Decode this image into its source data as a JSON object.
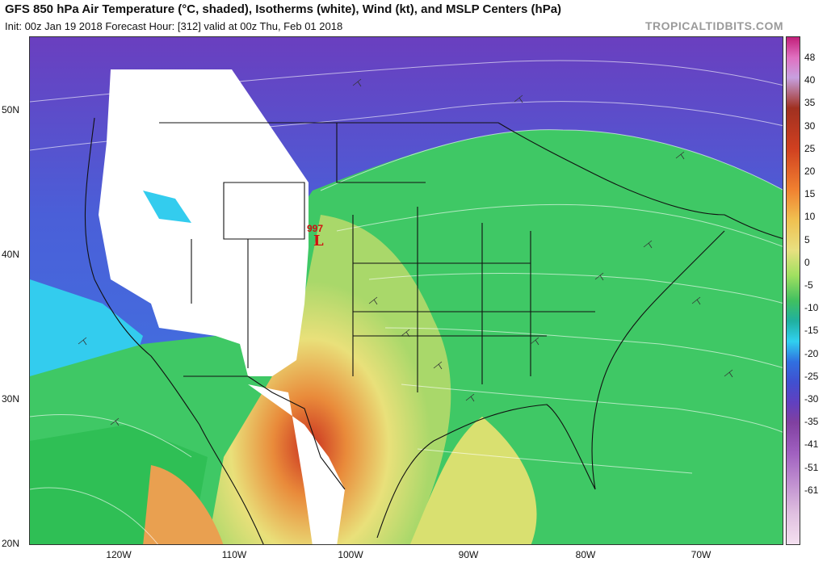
{
  "header": {
    "title": "GFS 850 hPa Air Temperature (°C, shaded), Isotherms (white), Wind (kt), and MSLP Centers (hPa)",
    "subtitle": "Init: 00z Jan 19 2018   Forecast Hour: [312]   valid at 00z Thu, Feb 01 2018",
    "brand": "TROPICALTIDBITS.COM"
  },
  "axes": {
    "latitudes": [
      "50N",
      "40N",
      "30N",
      "20N"
    ],
    "longitudes": [
      "120W",
      "110W",
      "100W",
      "90W",
      "80W",
      "70W"
    ]
  },
  "colorbar": {
    "ticks": [
      "48",
      "40",
      "35",
      "30",
      "25",
      "20",
      "15",
      "10",
      "5",
      "0",
      "-5",
      "-10",
      "-15",
      "-20",
      "-25",
      "-30",
      "-35",
      "-41",
      "-51",
      "-61"
    ]
  },
  "pressure_centers": [
    {
      "type": "low",
      "letter": "L",
      "value": "997"
    }
  ],
  "colors": {
    "cold_blue": "#3a6fe0",
    "cyan": "#33ccee",
    "green": "#2fbf55",
    "yellow": "#e9e07a",
    "orange": "#e98a3a",
    "red": "#c93020",
    "purple": "#6a3fbf",
    "low_marker": "#d01010"
  }
}
